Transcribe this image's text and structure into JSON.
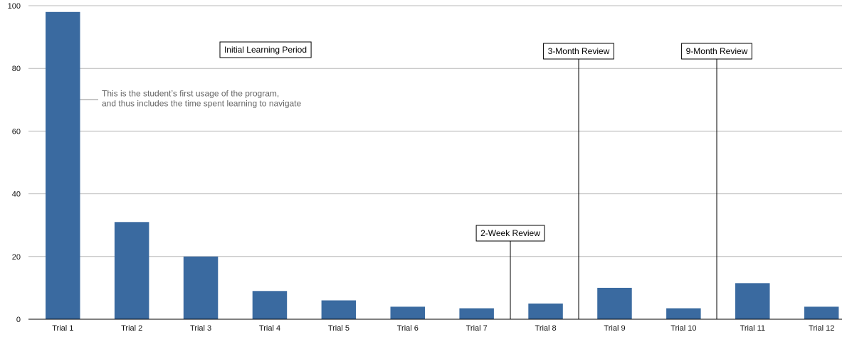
{
  "chart_data": {
    "type": "bar",
    "title": "",
    "xlabel": "",
    "ylabel": "",
    "ylim": [
      0,
      100
    ],
    "yticks": [
      0,
      20,
      40,
      60,
      80,
      100
    ],
    "grid": true,
    "bar_color": "#3a6aa0",
    "grid_color": "#b9b9b9",
    "categories": [
      "Trial 1",
      "Trial 2",
      "Trial 3",
      "Trial 4",
      "Trial 5",
      "Trial 6",
      "Trial 7",
      "Trial 8",
      "Trial 9",
      "Trial 10",
      "Trial 11",
      "Trial 12"
    ],
    "series": [
      {
        "values": [
          98,
          31,
          20,
          9,
          6,
          4,
          3.5,
          5,
          10,
          3.5,
          11.5,
          4
        ]
      }
    ],
    "annotations": {
      "note_lines": [
        "This is the student’s first usage of the program,",
        "and thus includes the time spent learning to navigate"
      ],
      "note_bar_index": 0,
      "note_value": 70,
      "periods": [
        {
          "label": "Initial Learning Period",
          "line": false
        },
        {
          "label": "2-Week Review",
          "line": true,
          "after_category_index": 6
        },
        {
          "label": "3-Month Review",
          "line": true,
          "after_category_index": 7
        },
        {
          "label": "9-Month Review",
          "line": true,
          "after_category_index": 9
        }
      ]
    }
  }
}
